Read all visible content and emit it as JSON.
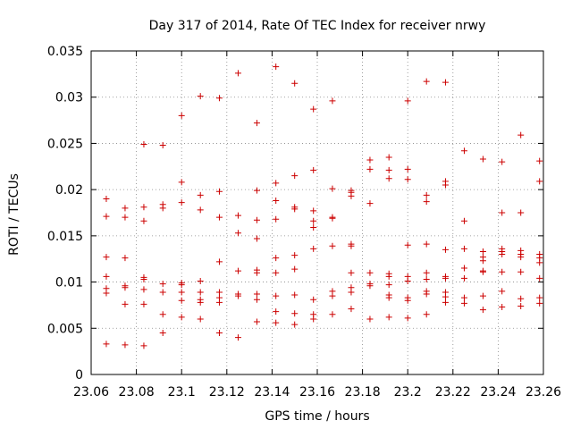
{
  "chart_data": {
    "type": "scatter",
    "title": "Day 317 of 2014, Rate Of TEC Index for receiver nrwy",
    "xlabel": "GPS time / hours",
    "ylabel": "ROTI / TECUs",
    "xlim": [
      23.06,
      23.26
    ],
    "ylim": [
      0,
      0.035
    ],
    "xticks": [
      23.06,
      23.08,
      23.1,
      23.12,
      23.14,
      23.16,
      23.18,
      23.2,
      23.22,
      23.24,
      23.26
    ],
    "xtick_labels": [
      "23.06",
      "23.08",
      "23.1",
      "23.12",
      "23.14",
      "23.16",
      "23.18",
      "23.2",
      "23.22",
      "23.24",
      "23.26"
    ],
    "yticks": [
      0,
      0.005,
      0.01,
      0.015,
      0.02,
      0.025,
      0.03,
      0.035
    ],
    "ytick_labels": [
      "0",
      "0.005",
      "0.01",
      "0.015",
      "0.02",
      "0.025",
      "0.03",
      "0.035"
    ],
    "grid": true,
    "marker": "+",
    "color": "#cc0000",
    "series": [
      {
        "name": "ROTI",
        "points": [
          [
            23.0667,
            0.019
          ],
          [
            23.0667,
            0.0171
          ],
          [
            23.0667,
            0.0127
          ],
          [
            23.0667,
            0.0106
          ],
          [
            23.0667,
            0.0093
          ],
          [
            23.0667,
            0.0088
          ],
          [
            23.0667,
            0.0033
          ],
          [
            23.075,
            0.018
          ],
          [
            23.075,
            0.017
          ],
          [
            23.075,
            0.0126
          ],
          [
            23.075,
            0.0096
          ],
          [
            23.075,
            0.0094
          ],
          [
            23.075,
            0.0076
          ],
          [
            23.075,
            0.0032
          ],
          [
            23.0833,
            0.0249
          ],
          [
            23.0833,
            0.0181
          ],
          [
            23.0833,
            0.0166
          ],
          [
            23.0833,
            0.0105
          ],
          [
            23.0833,
            0.0103
          ],
          [
            23.0833,
            0.0092
          ],
          [
            23.0833,
            0.0076
          ],
          [
            23.0833,
            0.0031
          ],
          [
            23.0917,
            0.0248
          ],
          [
            23.0917,
            0.0184
          ],
          [
            23.0917,
            0.018
          ],
          [
            23.0917,
            0.0098
          ],
          [
            23.0917,
            0.0089
          ],
          [
            23.0917,
            0.0065
          ],
          [
            23.0917,
            0.0045
          ],
          [
            23.1,
            0.028
          ],
          [
            23.1,
            0.0208
          ],
          [
            23.1,
            0.0186
          ],
          [
            23.1,
            0.0099
          ],
          [
            23.1,
            0.0097
          ],
          [
            23.1,
            0.0089
          ],
          [
            23.1,
            0.008
          ],
          [
            23.1,
            0.0062
          ],
          [
            23.1083,
            0.0301
          ],
          [
            23.1083,
            0.0194
          ],
          [
            23.1083,
            0.0178
          ],
          [
            23.1083,
            0.0101
          ],
          [
            23.1083,
            0.0089
          ],
          [
            23.1083,
            0.0081
          ],
          [
            23.1083,
            0.0078
          ],
          [
            23.1083,
            0.006
          ],
          [
            23.1167,
            0.0299
          ],
          [
            23.1167,
            0.0198
          ],
          [
            23.1167,
            0.017
          ],
          [
            23.1167,
            0.0122
          ],
          [
            23.1167,
            0.0089
          ],
          [
            23.1167,
            0.0083
          ],
          [
            23.1167,
            0.0078
          ],
          [
            23.1167,
            0.0045
          ],
          [
            23.125,
            0.0326
          ],
          [
            23.125,
            0.0172
          ],
          [
            23.125,
            0.0153
          ],
          [
            23.125,
            0.0112
          ],
          [
            23.125,
            0.0087
          ],
          [
            23.125,
            0.0085
          ],
          [
            23.125,
            0.004
          ],
          [
            23.1333,
            0.0272
          ],
          [
            23.1333,
            0.0199
          ],
          [
            23.1333,
            0.0167
          ],
          [
            23.1333,
            0.0147
          ],
          [
            23.1333,
            0.0113
          ],
          [
            23.1333,
            0.011
          ],
          [
            23.1333,
            0.0087
          ],
          [
            23.1333,
            0.0081
          ],
          [
            23.1333,
            0.0057
          ],
          [
            23.1417,
            0.0333
          ],
          [
            23.1417,
            0.0207
          ],
          [
            23.1417,
            0.0188
          ],
          [
            23.1417,
            0.0168
          ],
          [
            23.1417,
            0.0126
          ],
          [
            23.1417,
            0.011
          ],
          [
            23.1417,
            0.0085
          ],
          [
            23.1417,
            0.0068
          ],
          [
            23.1417,
            0.0056
          ],
          [
            23.15,
            0.0315
          ],
          [
            23.15,
            0.0215
          ],
          [
            23.15,
            0.0181
          ],
          [
            23.15,
            0.0179
          ],
          [
            23.15,
            0.0129
          ],
          [
            23.15,
            0.0114
          ],
          [
            23.15,
            0.0086
          ],
          [
            23.15,
            0.0066
          ],
          [
            23.15,
            0.0054
          ],
          [
            23.1583,
            0.0287
          ],
          [
            23.1583,
            0.0221
          ],
          [
            23.1583,
            0.0177
          ],
          [
            23.1583,
            0.0166
          ],
          [
            23.1583,
            0.0159
          ],
          [
            23.1583,
            0.0136
          ],
          [
            23.1583,
            0.0081
          ],
          [
            23.1583,
            0.0065
          ],
          [
            23.1583,
            0.006
          ],
          [
            23.1667,
            0.0296
          ],
          [
            23.1667,
            0.0201
          ],
          [
            23.1667,
            0.017
          ],
          [
            23.1667,
            0.0169
          ],
          [
            23.1667,
            0.0139
          ],
          [
            23.1667,
            0.009
          ],
          [
            23.1667,
            0.0085
          ],
          [
            23.1667,
            0.0065
          ],
          [
            23.175,
            0.0199
          ],
          [
            23.175,
            0.0197
          ],
          [
            23.175,
            0.0193
          ],
          [
            23.175,
            0.0141
          ],
          [
            23.175,
            0.0139
          ],
          [
            23.175,
            0.011
          ],
          [
            23.175,
            0.0094
          ],
          [
            23.175,
            0.0089
          ],
          [
            23.175,
            0.0071
          ],
          [
            23.1833,
            0.0232
          ],
          [
            23.1833,
            0.0222
          ],
          [
            23.1833,
            0.0185
          ],
          [
            23.1833,
            0.011
          ],
          [
            23.1833,
            0.0098
          ],
          [
            23.1833,
            0.0096
          ],
          [
            23.1833,
            0.006
          ],
          [
            23.1917,
            0.0235
          ],
          [
            23.1917,
            0.0221
          ],
          [
            23.1917,
            0.0212
          ],
          [
            23.1917,
            0.0109
          ],
          [
            23.1917,
            0.0106
          ],
          [
            23.1917,
            0.0097
          ],
          [
            23.1917,
            0.0086
          ],
          [
            23.1917,
            0.0083
          ],
          [
            23.1917,
            0.0062
          ],
          [
            23.2,
            0.0296
          ],
          [
            23.2,
            0.0222
          ],
          [
            23.2,
            0.0211
          ],
          [
            23.2,
            0.014
          ],
          [
            23.2,
            0.0106
          ],
          [
            23.2,
            0.0101
          ],
          [
            23.2,
            0.0083
          ],
          [
            23.2,
            0.008
          ],
          [
            23.2,
            0.0061
          ],
          [
            23.2083,
            0.0317
          ],
          [
            23.2083,
            0.0194
          ],
          [
            23.2083,
            0.0187
          ],
          [
            23.2083,
            0.0141
          ],
          [
            23.2083,
            0.011
          ],
          [
            23.2083,
            0.0103
          ],
          [
            23.2083,
            0.009
          ],
          [
            23.2083,
            0.0087
          ],
          [
            23.2083,
            0.0065
          ],
          [
            23.2167,
            0.0316
          ],
          [
            23.2167,
            0.0209
          ],
          [
            23.2167,
            0.0205
          ],
          [
            23.2167,
            0.0135
          ],
          [
            23.2167,
            0.0106
          ],
          [
            23.2167,
            0.0104
          ],
          [
            23.2167,
            0.0089
          ],
          [
            23.2167,
            0.0084
          ],
          [
            23.2167,
            0.0078
          ],
          [
            23.225,
            0.0242
          ],
          [
            23.225,
            0.0166
          ],
          [
            23.225,
            0.0136
          ],
          [
            23.225,
            0.0115
          ],
          [
            23.225,
            0.0104
          ],
          [
            23.225,
            0.0083
          ],
          [
            23.225,
            0.0077
          ],
          [
            23.2333,
            0.0233
          ],
          [
            23.2333,
            0.0133
          ],
          [
            23.2333,
            0.0127
          ],
          [
            23.2333,
            0.0123
          ],
          [
            23.2333,
            0.0112
          ],
          [
            23.2333,
            0.0111
          ],
          [
            23.2333,
            0.0085
          ],
          [
            23.2333,
            0.007
          ],
          [
            23.2417,
            0.023
          ],
          [
            23.2417,
            0.0175
          ],
          [
            23.2417,
            0.0136
          ],
          [
            23.2417,
            0.0133
          ],
          [
            23.2417,
            0.013
          ],
          [
            23.2417,
            0.0111
          ],
          [
            23.2417,
            0.009
          ],
          [
            23.2417,
            0.0073
          ],
          [
            23.25,
            0.0259
          ],
          [
            23.25,
            0.0175
          ],
          [
            23.25,
            0.0134
          ],
          [
            23.25,
            0.013
          ],
          [
            23.25,
            0.0127
          ],
          [
            23.25,
            0.0111
          ],
          [
            23.25,
            0.0082
          ],
          [
            23.25,
            0.0074
          ],
          [
            23.2583,
            0.0231
          ],
          [
            23.2583,
            0.0209
          ],
          [
            23.2583,
            0.013
          ],
          [
            23.2583,
            0.0126
          ],
          [
            23.2583,
            0.0121
          ],
          [
            23.2583,
            0.0104
          ],
          [
            23.2583,
            0.0083
          ],
          [
            23.2583,
            0.0077
          ]
        ]
      }
    ]
  }
}
